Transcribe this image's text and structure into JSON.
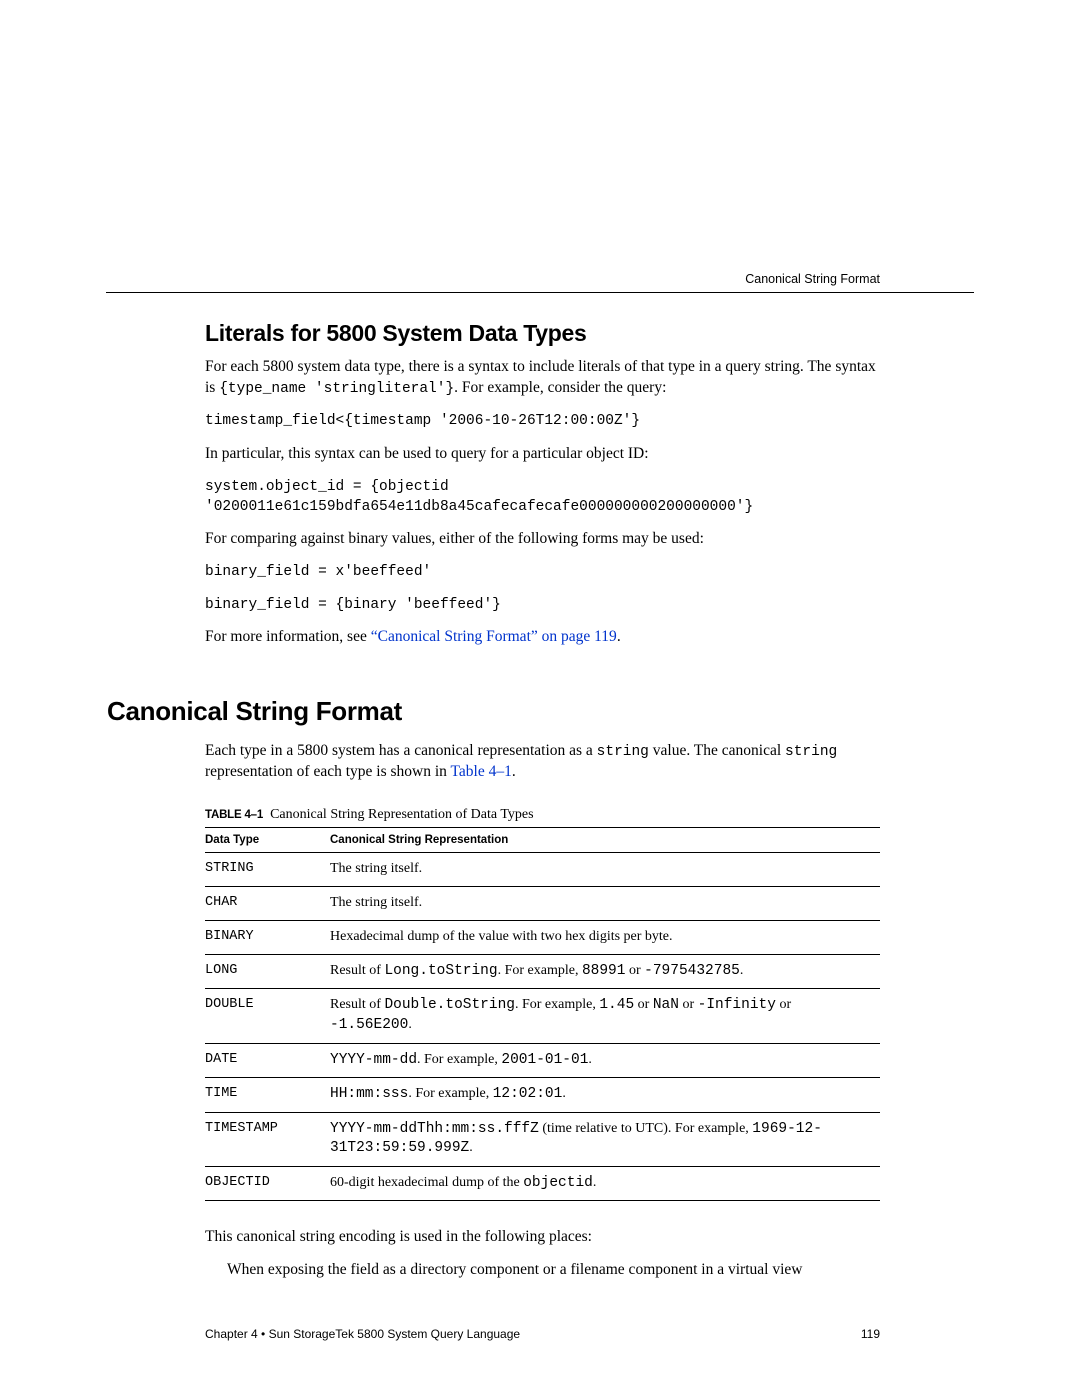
{
  "runningHead": "Canonical String Format",
  "section1": {
    "title": "Literals for 5800 System Data Types",
    "p1a": "For each 5800 system data type, there is a syntax to include literals of that type in a query string. The syntax is ",
    "p1b": "{type_name 'stringliteral'}",
    "p1c": ". For example, consider the query:",
    "code1": "timestamp_field<{timestamp '2006-10-26T12:00:00Z'}",
    "p2": "In particular, this syntax can be used to query for a particular object ID:",
    "code2": "system.object_id = {objectid\n'0200011e61c159bdfa654e11db8a45cafecafecafe000000000200000000'}",
    "p3": "For comparing against binary values, either of the following forms may be used:",
    "code3": "binary_field = x'beeffeed'",
    "code4": "binary_field = {binary 'beeffeed'}",
    "p4a": "For more information, see ",
    "p4link": "“Canonical String Format” on page 119",
    "p4b": "."
  },
  "section2": {
    "title": "Canonical String Format",
    "p1a": "Each type in a 5800 system has a canonical representation as a ",
    "p1code": "string",
    "p1b": " value. The canonical ",
    "p1code2": "string",
    "p1c": " representation of each type is shown in ",
    "p1link": "Table 4–1",
    "p1d": ".",
    "tableLabel": "TABLE 4–1",
    "tableCaption": "Canonical String Representation of Data Types",
    "th1": "Data Type",
    "th2": "Canonical String Representation",
    "rows": [
      {
        "dt": "STRING",
        "rep": [
          {
            "t": "The string itself."
          }
        ]
      },
      {
        "dt": "CHAR",
        "rep": [
          {
            "t": "The string itself."
          }
        ]
      },
      {
        "dt": "BINARY",
        "rep": [
          {
            "t": "Hexadecimal dump of the value with two hex digits per byte."
          }
        ]
      },
      {
        "dt": "LONG",
        "rep": [
          {
            "t": "Result of "
          },
          {
            "c": "Long.toString"
          },
          {
            "t": ". For example, "
          },
          {
            "c": "88991"
          },
          {
            "t": " or "
          },
          {
            "c": "-7975432785"
          },
          {
            "t": "."
          }
        ]
      },
      {
        "dt": "DOUBLE",
        "rep": [
          {
            "t": "Result of "
          },
          {
            "c": "Double.toString"
          },
          {
            "t": ". For example, "
          },
          {
            "c": "1.45"
          },
          {
            "t": " or "
          },
          {
            "c": "NaN"
          },
          {
            "t": " or "
          },
          {
            "c": "-Infinity"
          },
          {
            "t": " or "
          },
          {
            "c": "-1.56E200"
          },
          {
            "t": "."
          }
        ]
      },
      {
        "dt": "DATE",
        "rep": [
          {
            "c": "YYYY-mm-dd"
          },
          {
            "t": ". For example, "
          },
          {
            "c": "2001-01-01"
          },
          {
            "t": "."
          }
        ]
      },
      {
        "dt": "TIME",
        "rep": [
          {
            "c": "HH:mm:sss"
          },
          {
            "t": ". For example, "
          },
          {
            "c": "12:02:01"
          },
          {
            "t": "."
          }
        ]
      },
      {
        "dt": "TIMESTAMP",
        "rep": [
          {
            "c": "YYYY-mm-ddThh:mm:ss.fffZ"
          },
          {
            "t": " (time relative to UTC). For example, "
          },
          {
            "c": "1969-12-31T23:59:59.999Z"
          },
          {
            "t": "."
          }
        ]
      },
      {
        "dt": "OBJECTID",
        "rep": [
          {
            "t": "60-digit hexadecimal dump of the "
          },
          {
            "c": "objectid"
          },
          {
            "t": "."
          }
        ]
      }
    ],
    "p2": "This canonical string encoding is used in the following places:",
    "bullet1": "When exposing the field as a directory component or a filename component in a virtual view"
  },
  "footer": {
    "chapter": "Chapter 4 • Sun StorageTek 5800 System Query Language",
    "page": "119"
  }
}
